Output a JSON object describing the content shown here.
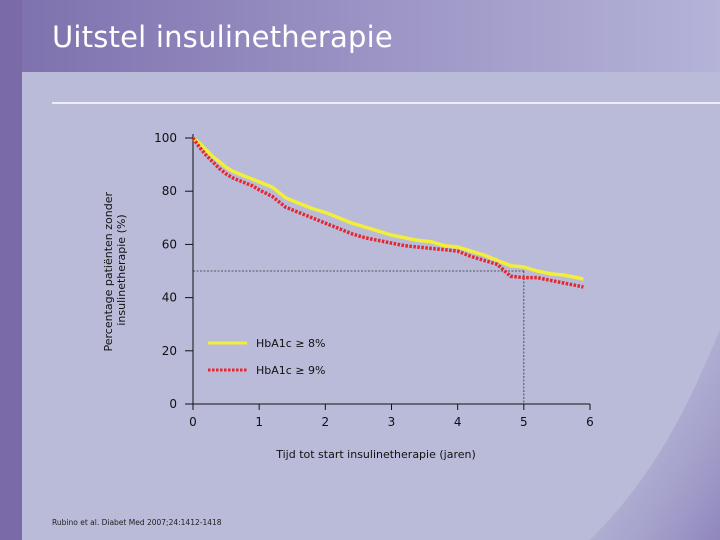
{
  "slide": {
    "title": "Uitstel insulinetherapie",
    "source": "Rubino et al. Diabet Med 2007;24:1412-1418"
  },
  "colors": {
    "title": "#ffffff",
    "series_hba1c8": "#f2ee3a",
    "series_hba1c9": "#e8242c"
  },
  "chart_data": {
    "type": "line",
    "xlabel": "Tijd tot start insulinetherapie (jaren)",
    "ylabel": "Percentage patiënten zonder insulinetherapie (%)",
    "xlim": [
      0,
      6
    ],
    "ylim": [
      0,
      100
    ],
    "xticks": [
      0,
      1,
      2,
      3,
      4,
      5,
      6
    ],
    "yticks": [
      0,
      20,
      40,
      60,
      80,
      100
    ],
    "legend": "lower-left",
    "reference_lines": [
      {
        "type": "horizontal",
        "y": 50,
        "x_from": 0,
        "x_to": 5
      },
      {
        "type": "vertical",
        "x": 5,
        "y_from": 0,
        "y_to": 50
      }
    ],
    "series": [
      {
        "name": "HbA1c ≥ 8%",
        "style": "solid",
        "x": [
          0,
          0.1,
          0.2,
          0.3,
          0.4,
          0.5,
          0.6,
          0.7,
          0.8,
          0.9,
          1.0,
          1.2,
          1.4,
          1.6,
          1.8,
          2.0,
          2.2,
          2.4,
          2.6,
          2.8,
          3.0,
          3.2,
          3.4,
          3.6,
          3.8,
          4.0,
          4.2,
          4.4,
          4.6,
          4.8,
          5.0,
          5.2,
          5.4,
          5.6,
          5.8,
          5.9
        ],
        "values": [
          100,
          98,
          95.5,
          93,
          91,
          89,
          87.5,
          86.5,
          85.5,
          84.5,
          83.5,
          81.5,
          77.5,
          75.5,
          73.5,
          72,
          70,
          68,
          66.5,
          65,
          63.5,
          62.5,
          61.5,
          61,
          59.5,
          59,
          57.5,
          56,
          54,
          52,
          51.5,
          50,
          49,
          48.5,
          47.5,
          47
        ]
      },
      {
        "name": "HbA1c ≥ 9%",
        "style": "dotted",
        "x": [
          0,
          0.1,
          0.2,
          0.3,
          0.4,
          0.5,
          0.6,
          0.7,
          0.8,
          0.9,
          1.0,
          1.2,
          1.4,
          1.6,
          1.8,
          2.0,
          2.2,
          2.4,
          2.6,
          2.8,
          3.0,
          3.2,
          3.4,
          3.6,
          3.8,
          4.0,
          4.2,
          4.4,
          4.6,
          4.8,
          5.0,
          5.2,
          5.4,
          5.6,
          5.8,
          5.9
        ],
        "values": [
          100,
          96.5,
          93.5,
          91,
          88.5,
          86.5,
          85,
          84,
          83,
          82,
          80.5,
          78,
          74,
          72,
          70,
          68,
          66,
          64,
          62.5,
          61.5,
          60.5,
          59.5,
          59,
          58.5,
          58,
          57.5,
          55.5,
          54,
          52.5,
          48,
          47.5,
          47.5,
          46.5,
          45.5,
          44.5,
          44
        ]
      }
    ]
  }
}
